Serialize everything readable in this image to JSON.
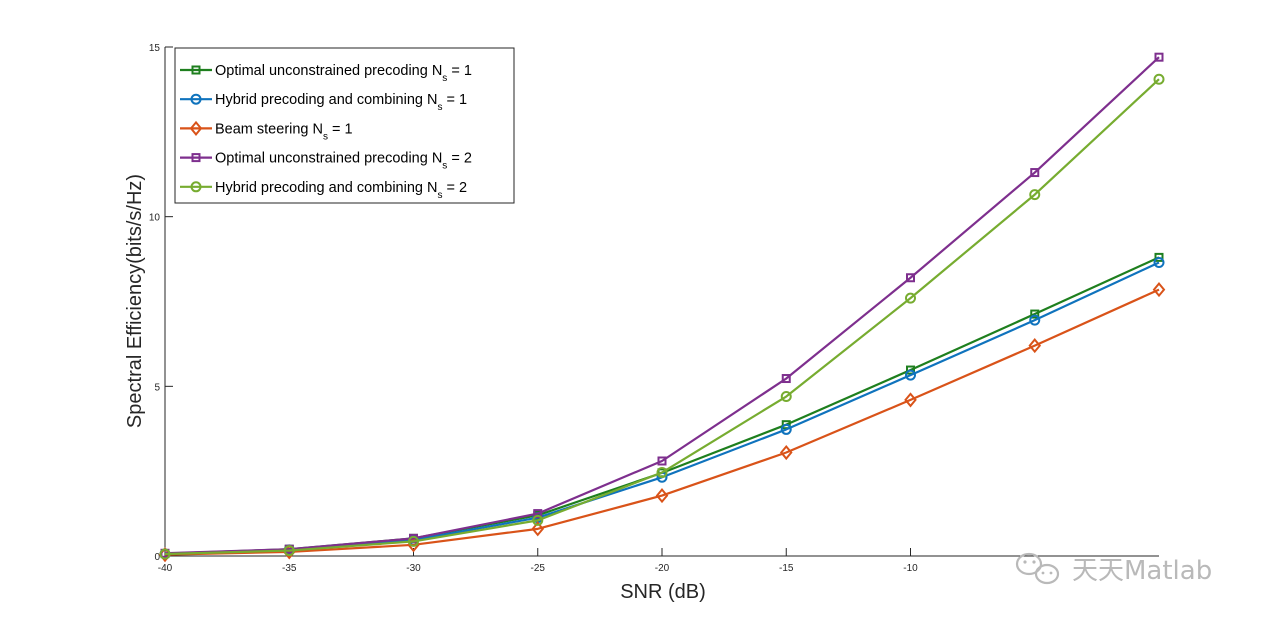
{
  "chart_data": {
    "type": "line",
    "xlabel": "SNR (dB)",
    "ylabel": "Spectral Efficiency(bits/s/Hz)",
    "xlim": [
      -40,
      0
    ],
    "ylim": [
      0,
      15
    ],
    "x": [
      -40,
      -35,
      -30,
      -25,
      -20,
      -15,
      -10,
      -5,
      0
    ],
    "x_ticks": [
      -40,
      -35,
      -30,
      -25,
      -20,
      -15,
      -10
    ],
    "y_ticks": [
      0,
      5,
      10,
      15
    ],
    "grid": false,
    "legend_position": "top-left",
    "series": [
      {
        "name": "Optimal unconstrained precoding N_s = 1",
        "legend": {
          "main": "Optimal unconstrained precoding N",
          "sub": "s",
          "tail": " = 1"
        },
        "color": "#1e7f1e",
        "marker": "square",
        "values": [
          0.07,
          0.2,
          0.52,
          1.2,
          2.45,
          3.87,
          5.48,
          7.13,
          8.8
        ]
      },
      {
        "name": "Hybrid precoding and combining N_s = 1",
        "legend": {
          "main": "Hybrid precoding and combining N",
          "sub": "s",
          "tail": " = 1"
        },
        "color": "#0f73bd",
        "marker": "circle",
        "values": [
          0.06,
          0.18,
          0.47,
          1.13,
          2.32,
          3.73,
          5.33,
          6.95,
          8.65
        ]
      },
      {
        "name": "Beam steering N_s = 1",
        "legend": {
          "main": "Beam steering N",
          "sub": "s",
          "tail": " = 1"
        },
        "color": "#d95319",
        "marker": "diamond",
        "values": [
          0.04,
          0.12,
          0.33,
          0.8,
          1.78,
          3.05,
          4.6,
          6.2,
          7.85
        ]
      },
      {
        "name": "Optimal unconstrained precoding N_s = 2",
        "legend": {
          "main": "Optimal unconstrained precoding N",
          "sub": "s",
          "tail": " = 2"
        },
        "color": "#7e2f8e",
        "marker": "square",
        "values": [
          0.08,
          0.2,
          0.52,
          1.25,
          2.8,
          5.23,
          8.2,
          11.3,
          14.7
        ]
      },
      {
        "name": "Hybrid precoding and combining N_s = 2",
        "legend": {
          "main": "Hybrid precoding and combining N",
          "sub": "s",
          "tail": " = 2"
        },
        "color": "#77ac30",
        "marker": "circle",
        "values": [
          0.06,
          0.16,
          0.43,
          1.05,
          2.46,
          4.7,
          7.6,
          10.65,
          14.05
        ]
      }
    ]
  },
  "watermark": {
    "text": "天天Matlab",
    "icon": "wechat-icon"
  }
}
